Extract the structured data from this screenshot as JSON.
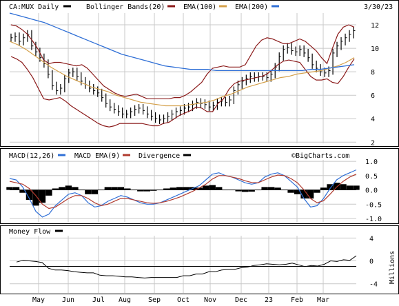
{
  "header": {
    "symbol_label": "CA:MUX Daily",
    "bollinger_label": "Bollinger Bands(20)",
    "ema100_label": "EMA(100)",
    "ema200_label": "EMA(200)",
    "date": "3/30/23"
  },
  "macd_header": {
    "macd_label": "MACD(12,26)",
    "signal_label": "MACD EMA(9)",
    "divergence_label": "Divergence",
    "watermark": "©BigCharts.com"
  },
  "moneyflow_header": {
    "label": "Money Flow",
    "unit_label": "Millions"
  },
  "colors": {
    "price": "#000000",
    "bollinger": "#8b1a1a",
    "ema100": "#d4a04a",
    "ema200": "#2f6fd6",
    "macd": "#2f6fd6",
    "signal": "#b03a2e",
    "divergence": "#000000",
    "moneyflow": "#000000",
    "grid": "#c8c8c8"
  },
  "chart_data": [
    {
      "type": "line",
      "panel": "price",
      "y_ticks": [
        2,
        4,
        6,
        8,
        10,
        12
      ],
      "ylim": [
        1.9,
        13.0
      ],
      "grid": true,
      "x_month_labels": [
        "May",
        "Jun",
        "Jul",
        "Aug",
        "Sep",
        "Oct",
        "Nov",
        "Dec",
        "23",
        "Feb",
        "Mar"
      ],
      "price_close": [
        10.9,
        11.0,
        10.6,
        10.9,
        11.2,
        10.2,
        9.7,
        9.2,
        8.7,
        7.8,
        6.8,
        6.4,
        6.6,
        7.4,
        7.9,
        8.0,
        7.6,
        7.2,
        6.9,
        6.6,
        6.4,
        6.2,
        5.8,
        5.3,
        5.0,
        4.8,
        4.6,
        4.4,
        4.4,
        4.6,
        4.8,
        4.9,
        4.7,
        4.4,
        4.2,
        4.0,
        3.9,
        4.0,
        4.2,
        4.4,
        4.6,
        4.7,
        4.9,
        5.0,
        5.2,
        5.4,
        5.3,
        5.2,
        5.0,
        5.1,
        5.4,
        5.5,
        5.4,
        5.6,
        6.4,
        6.9,
        7.2,
        7.4,
        7.6,
        7.5,
        7.6,
        7.6,
        7.5,
        7.8,
        8.4,
        9.3,
        9.9,
        10.1,
        9.8,
        9.7,
        9.9,
        9.6,
        9.2,
        8.6,
        8.3,
        8.0,
        7.9,
        8.1,
        9.6,
        10.2,
        10.6,
        10.9,
        11.2,
        11.5
      ],
      "bollinger_upper": [
        12.0,
        11.9,
        11.6,
        11.2,
        10.6,
        9.9,
        9.0,
        8.7,
        8.8,
        8.8,
        8.7,
        8.6,
        8.5,
        8.6,
        8.3,
        7.8,
        7.3,
        6.8,
        6.5,
        6.2,
        6.0,
        5.9,
        6.0,
        6.1,
        5.9,
        5.7,
        5.7,
        5.7,
        5.7,
        5.7,
        5.8,
        5.8,
        6.0,
        6.3,
        6.7,
        7.1,
        7.8,
        8.3,
        8.4,
        8.5,
        8.4,
        8.4,
        8.4,
        8.6,
        9.4,
        10.2,
        10.7,
        10.9,
        10.8,
        10.6,
        10.4,
        10.4,
        10.6,
        10.8,
        10.6,
        10.2,
        9.8,
        9.2,
        8.7,
        10.0,
        11.2,
        11.8,
        12.0,
        11.8
      ],
      "bollinger_lower": [
        9.3,
        9.1,
        8.8,
        8.2,
        7.5,
        6.6,
        5.7,
        5.6,
        5.7,
        5.8,
        5.5,
        5.1,
        4.8,
        4.5,
        4.2,
        3.9,
        3.6,
        3.4,
        3.3,
        3.4,
        3.6,
        3.6,
        3.6,
        3.6,
        3.6,
        3.5,
        3.4,
        3.4,
        3.6,
        3.7,
        4.0,
        4.3,
        4.5,
        4.7,
        5.0,
        4.9,
        4.6,
        4.6,
        5.3,
        5.7,
        6.5,
        7.0,
        7.2,
        7.3,
        7.4,
        7.5,
        7.6,
        7.8,
        8.2,
        8.6,
        8.9,
        9.0,
        8.9,
        8.8,
        8.2,
        7.6,
        7.3,
        7.3,
        7.4,
        7.1,
        7.0,
        7.6,
        8.4,
        9.1
      ],
      "ema100": [
        10.6,
        10.3,
        9.9,
        9.4,
        8.9,
        8.4,
        8.0,
        7.6,
        7.3,
        7.0,
        6.7,
        6.5,
        6.3,
        6.0,
        5.8,
        5.6,
        5.4,
        5.3,
        5.2,
        5.1,
        5.1,
        5.1,
        5.2,
        5.3,
        5.4,
        5.6,
        5.9,
        6.1,
        6.4,
        6.7,
        6.9,
        7.1,
        7.3,
        7.5,
        7.6,
        7.8,
        7.9,
        8.0,
        8.1,
        8.3,
        8.5,
        8.8,
        9.2
      ],
      "ema200": [
        13.0,
        12.8,
        12.6,
        12.4,
        12.2,
        11.9,
        11.6,
        11.3,
        11.0,
        10.7,
        10.4,
        10.1,
        9.8,
        9.5,
        9.3,
        9.1,
        8.9,
        8.7,
        8.5,
        8.4,
        8.3,
        8.2,
        8.2,
        8.2,
        8.1,
        8.1,
        8.1,
        8.1,
        8.1,
        8.1,
        8.1,
        8.1,
        8.1,
        8.1,
        8.1,
        8.2,
        8.2,
        8.3,
        8.4,
        8.5,
        8.6
      ]
    },
    {
      "type": "line",
      "panel": "macd",
      "y_ticks": [
        -1.0,
        -0.5,
        0.0,
        0.5,
        1.0
      ],
      "y_tick_labels": [
        "-1.0",
        "-0.5",
        "0.0",
        "0.5",
        "1.0"
      ],
      "ylim": [
        -1.12,
        1.05
      ],
      "macd": [
        0.4,
        0.35,
        0.1,
        -0.3,
        -0.75,
        -0.95,
        -0.85,
        -0.55,
        -0.35,
        -0.15,
        -0.1,
        -0.2,
        -0.45,
        -0.6,
        -0.55,
        -0.4,
        -0.3,
        -0.2,
        -0.25,
        -0.35,
        -0.45,
        -0.5,
        -0.5,
        -0.45,
        -0.35,
        -0.25,
        -0.15,
        -0.05,
        0.05,
        0.15,
        0.35,
        0.55,
        0.6,
        0.5,
        0.45,
        0.35,
        0.25,
        0.2,
        0.25,
        0.45,
        0.55,
        0.6,
        0.5,
        0.3,
        0.1,
        -0.3,
        -0.6,
        -0.55,
        -0.3,
        0.05,
        0.35,
        0.5,
        0.6,
        0.7
      ],
      "signal": [
        0.3,
        0.25,
        0.2,
        0.05,
        -0.2,
        -0.5,
        -0.65,
        -0.6,
        -0.45,
        -0.3,
        -0.2,
        -0.2,
        -0.3,
        -0.45,
        -0.55,
        -0.5,
        -0.4,
        -0.3,
        -0.3,
        -0.35,
        -0.4,
        -0.45,
        -0.47,
        -0.45,
        -0.4,
        -0.33,
        -0.25,
        -0.15,
        -0.05,
        0.07,
        0.2,
        0.38,
        0.5,
        0.5,
        0.45,
        0.4,
        0.32,
        0.26,
        0.25,
        0.35,
        0.45,
        0.52,
        0.5,
        0.4,
        0.25,
        0.0,
        -0.3,
        -0.45,
        -0.38,
        -0.15,
        0.1,
        0.3,
        0.45,
        0.55
      ],
      "divergence": [
        0.1,
        0.1,
        -0.1,
        -0.35,
        -0.55,
        -0.45,
        -0.2,
        0.05,
        0.1,
        0.15,
        0.1,
        0.0,
        -0.15,
        -0.15,
        0.0,
        0.1,
        0.1,
        0.1,
        0.05,
        0.0,
        -0.05,
        -0.05,
        -0.03,
        0.0,
        0.05,
        0.08,
        0.1,
        0.1,
        0.1,
        0.08,
        0.15,
        0.17,
        0.1,
        0.0,
        0.0,
        -0.05,
        -0.07,
        -0.06,
        0.0,
        0.1,
        0.1,
        0.08,
        0.0,
        -0.1,
        -0.15,
        -0.3,
        -0.3,
        -0.1,
        0.08,
        0.2,
        0.25,
        0.2,
        0.15,
        0.15
      ]
    },
    {
      "type": "area",
      "panel": "money_flow",
      "y_ticks": [
        -4,
        0,
        4
      ],
      "y_tick_labels": [
        "-4",
        "0",
        "4"
      ],
      "ylim": [
        -5.6,
        4.4
      ],
      "values": [
        -0.2,
        0.1,
        0.0,
        -0.1,
        -0.3,
        -1.3,
        -1.6,
        -1.6,
        -1.7,
        -1.9,
        -2.0,
        -2.1,
        -2.1,
        -2.5,
        -2.6,
        -2.6,
        -2.7,
        -2.8,
        -2.8,
        -2.9,
        -3.0,
        -2.9,
        -2.9,
        -2.9,
        -2.9,
        -2.9,
        -2.6,
        -2.6,
        -2.3,
        -2.3,
        -1.9,
        -1.9,
        -1.6,
        -1.5,
        -1.5,
        -1.2,
        -1.1,
        -0.8,
        -0.7,
        -0.5,
        -0.6,
        -0.7,
        -0.6,
        -0.4,
        -0.7,
        -1.0,
        -0.8,
        -0.9,
        -0.6,
        0.0,
        -0.1,
        0.2,
        0.1,
        0.9
      ]
    }
  ]
}
